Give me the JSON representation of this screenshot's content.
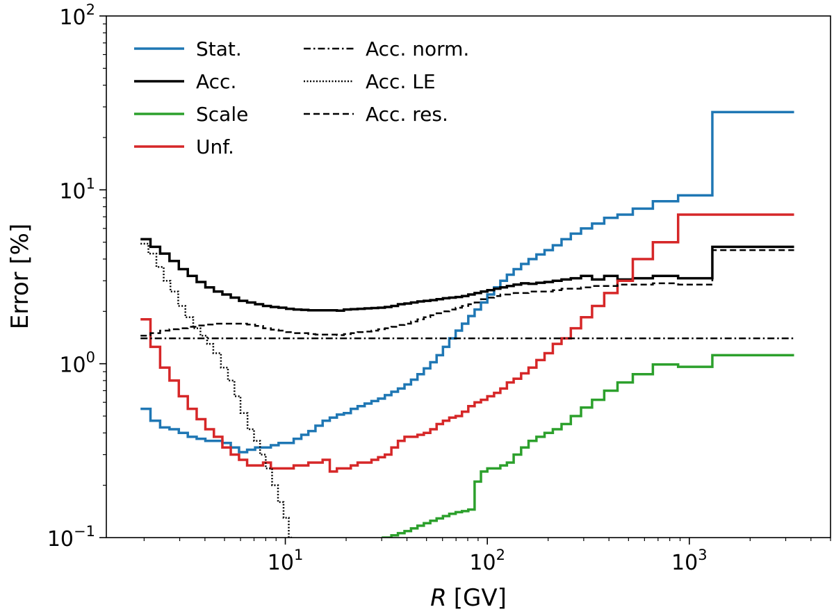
{
  "chart_data": {
    "type": "line",
    "title": "",
    "xlabel": "R",
    "xlabel_unit": "[GV]",
    "ylabel": "Error [%]",
    "xscale": "log",
    "yscale": "log",
    "xlim": [
      1.3,
      5000
    ],
    "ylim": [
      0.1,
      100
    ],
    "x_ticks": [
      {
        "value": 10,
        "base": "10",
        "exp": "1"
      },
      {
        "value": 100,
        "base": "10",
        "exp": "2"
      },
      {
        "value": 1000,
        "base": "10",
        "exp": "3"
      }
    ],
    "y_ticks": [
      {
        "value": 0.1,
        "base": "10",
        "exp": "−1"
      },
      {
        "value": 1,
        "base": "10",
        "exp": "0"
      },
      {
        "value": 10,
        "base": "10",
        "exp": "1"
      },
      {
        "value": 100,
        "base": "10",
        "exp": "2"
      }
    ],
    "legend_position": "top-left",
    "series": [
      {
        "name": "Stat.",
        "color": "#1f77b4",
        "dash": "solid",
        "width": 3.5,
        "legend_col": 0,
        "legend_row": 0,
        "x": [
          1.92,
          2.15,
          2.4,
          2.67,
          2.97,
          3.29,
          3.64,
          4.02,
          4.43,
          4.88,
          5.37,
          5.9,
          6.47,
          7.09,
          7.76,
          8.48,
          9.26,
          10.1,
          11.0,
          12.0,
          13.0,
          14.1,
          15.3,
          16.6,
          18.0,
          19.5,
          21.1,
          22.8,
          24.7,
          26.7,
          28.8,
          31.1,
          33.5,
          36.1,
          38.9,
          41.9,
          45.1,
          48.5,
          52.2,
          56.1,
          60.3,
          64.8,
          69.7,
          74.9,
          80.5,
          86.5,
          93.0,
          100,
          108,
          116,
          125,
          135,
          147,
          160,
          175,
          192,
          211,
          233,
          259,
          291,
          330,
          379,
          441,
          525,
          660,
          880,
          1300,
          3300
        ],
        "y": [
          0.55,
          0.47,
          0.43,
          0.42,
          0.4,
          0.38,
          0.37,
          0.36,
          0.36,
          0.35,
          0.33,
          0.31,
          0.32,
          0.33,
          0.33,
          0.34,
          0.35,
          0.35,
          0.37,
          0.39,
          0.41,
          0.44,
          0.47,
          0.49,
          0.51,
          0.52,
          0.55,
          0.57,
          0.59,
          0.61,
          0.63,
          0.66,
          0.69,
          0.72,
          0.76,
          0.81,
          0.87,
          0.94,
          1.02,
          1.12,
          1.25,
          1.4,
          1.55,
          1.7,
          1.88,
          2.05,
          2.25,
          2.5,
          2.75,
          3.0,
          3.25,
          3.5,
          3.75,
          4.0,
          4.25,
          4.5,
          4.8,
          5.2,
          5.6,
          6.0,
          6.4,
          6.9,
          7.2,
          7.8,
          8.6,
          9.3,
          28,
          28
        ]
      },
      {
        "name": "Acc.",
        "color": "#000000",
        "dash": "solid",
        "width": 3.5,
        "legend_col": 0,
        "legend_row": 1,
        "x": [
          1.92,
          2.15,
          2.4,
          2.67,
          2.97,
          3.29,
          3.64,
          4.02,
          4.43,
          4.88,
          5.37,
          5.9,
          6.47,
          7.09,
          7.76,
          8.48,
          9.26,
          10.1,
          11.0,
          12.0,
          13.0,
          14.1,
          15.3,
          16.6,
          18.0,
          19.5,
          21.1,
          22.8,
          24.7,
          26.7,
          28.8,
          31.1,
          33.5,
          36.1,
          38.9,
          41.9,
          45.1,
          48.5,
          52.2,
          56.1,
          60.3,
          64.8,
          69.7,
          74.9,
          80.5,
          86.5,
          93.0,
          100,
          108,
          116,
          125,
          135,
          147,
          160,
          175,
          192,
          211,
          233,
          259,
          291,
          330,
          379,
          441,
          525,
          660,
          880,
          1300,
          3300
        ],
        "y": [
          5.2,
          4.7,
          4.3,
          3.9,
          3.5,
          3.2,
          2.95,
          2.75,
          2.6,
          2.5,
          2.4,
          2.3,
          2.25,
          2.2,
          2.15,
          2.12,
          2.1,
          2.07,
          2.05,
          2.04,
          2.03,
          2.03,
          2.03,
          2.03,
          2.02,
          2.05,
          2.06,
          2.07,
          2.08,
          2.09,
          2.1,
          2.12,
          2.15,
          2.2,
          2.22,
          2.25,
          2.28,
          2.3,
          2.32,
          2.35,
          2.38,
          2.4,
          2.42,
          2.45,
          2.5,
          2.55,
          2.6,
          2.65,
          2.7,
          2.75,
          2.8,
          2.85,
          2.9,
          2.88,
          2.92,
          2.95,
          3.0,
          3.05,
          3.1,
          3.2,
          3.05,
          3.2,
          3.05,
          3.1,
          3.2,
          3.1,
          4.7,
          4.7
        ]
      },
      {
        "name": "Scale",
        "color": "#2ca02c",
        "dash": "solid",
        "width": 3.5,
        "legend_col": 0,
        "legend_row": 2,
        "x": [
          30,
          33.5,
          36.1,
          38.9,
          41.9,
          45.1,
          48.5,
          52.2,
          56.1,
          60.3,
          64.8,
          69.7,
          74.9,
          80.5,
          86.5,
          93.0,
          100,
          108,
          116,
          125,
          135,
          147,
          160,
          175,
          192,
          211,
          233,
          259,
          291,
          330,
          379,
          441,
          525,
          660,
          880,
          1300,
          3300
        ],
        "y": [
          0.1,
          0.103,
          0.106,
          0.109,
          0.113,
          0.117,
          0.121,
          0.125,
          0.129,
          0.133,
          0.137,
          0.14,
          0.142,
          0.145,
          0.21,
          0.24,
          0.25,
          0.25,
          0.26,
          0.27,
          0.3,
          0.33,
          0.36,
          0.38,
          0.4,
          0.42,
          0.45,
          0.5,
          0.56,
          0.62,
          0.7,
          0.78,
          0.87,
          0.99,
          0.96,
          1.12,
          1.12
        ]
      },
      {
        "name": "Unf.",
        "color": "#d62728",
        "dash": "solid",
        "width": 3.5,
        "legend_col": 0,
        "legend_row": 3,
        "x": [
          1.92,
          2.15,
          2.4,
          2.67,
          2.97,
          3.29,
          3.64,
          4.02,
          4.43,
          4.88,
          5.37,
          5.9,
          6.47,
          7.09,
          7.76,
          8.48,
          9.26,
          10.1,
          11.0,
          12.0,
          13.0,
          14.1,
          15.3,
          16.6,
          18.0,
          19.5,
          21.1,
          22.8,
          24.7,
          26.7,
          28.8,
          31.1,
          33.5,
          36.1,
          38.9,
          41.9,
          45.1,
          48.5,
          52.2,
          56.1,
          60.3,
          64.8,
          69.7,
          74.9,
          80.5,
          86.5,
          93.0,
          100,
          108,
          116,
          125,
          135,
          147,
          160,
          175,
          192,
          211,
          233,
          259,
          291,
          330,
          379,
          441,
          525,
          660,
          880,
          1300,
          3300
        ],
        "y": [
          1.8,
          1.25,
          0.95,
          0.8,
          0.65,
          0.55,
          0.48,
          0.42,
          0.38,
          0.33,
          0.3,
          0.28,
          0.26,
          0.26,
          0.27,
          0.25,
          0.25,
          0.25,
          0.26,
          0.26,
          0.27,
          0.27,
          0.28,
          0.24,
          0.25,
          0.25,
          0.26,
          0.27,
          0.27,
          0.28,
          0.29,
          0.3,
          0.33,
          0.36,
          0.38,
          0.38,
          0.39,
          0.4,
          0.42,
          0.45,
          0.47,
          0.49,
          0.5,
          0.53,
          0.57,
          0.6,
          0.62,
          0.65,
          0.68,
          0.72,
          0.78,
          0.82,
          0.88,
          0.95,
          1.05,
          1.15,
          1.3,
          1.4,
          1.6,
          1.85,
          2.15,
          2.55,
          3.0,
          4.0,
          5.0,
          7.2,
          7.2,
          7.2
        ]
      },
      {
        "name": "Acc. norm.",
        "color": "#000000",
        "dash": "dashdot",
        "width": 2.5,
        "legend_col": 1,
        "legend_row": 0,
        "x": [
          1.92,
          3300
        ],
        "y": [
          1.4,
          1.4
        ]
      },
      {
        "name": "Acc. LE",
        "color": "#000000",
        "dash": "dotted",
        "width": 2.5,
        "legend_col": 1,
        "legend_row": 1,
        "x": [
          1.92,
          2.1,
          2.3,
          2.5,
          2.7,
          2.95,
          3.2,
          3.5,
          3.8,
          4.1,
          4.4,
          4.8,
          5.2,
          5.6,
          6.0,
          6.5,
          7.0,
          7.5,
          8.0,
          8.6,
          9.2,
          9.8,
          10.4,
          11.0
        ],
        "y": [
          4.9,
          4.3,
          3.6,
          3.0,
          2.6,
          2.15,
          1.85,
          1.6,
          1.45,
          1.3,
          1.15,
          0.95,
          0.8,
          0.65,
          0.52,
          0.42,
          0.36,
          0.3,
          0.25,
          0.2,
          0.16,
          0.13,
          0.1,
          0.1
        ]
      },
      {
        "name": "Acc. res.",
        "color": "#000000",
        "dash": "dashed",
        "width": 2.5,
        "legend_col": 1,
        "legend_row": 2,
        "x": [
          1.92,
          2.15,
          2.4,
          2.67,
          2.97,
          3.29,
          3.64,
          4.02,
          4.43,
          4.88,
          5.37,
          5.9,
          6.47,
          7.09,
          7.76,
          8.48,
          9.26,
          10.1,
          11.0,
          12.0,
          13.0,
          14.1,
          15.3,
          16.6,
          18.0,
          19.5,
          21.1,
          22.8,
          24.7,
          26.7,
          28.8,
          31.1,
          33.5,
          36.1,
          38.9,
          41.9,
          45.1,
          48.5,
          52.2,
          56.1,
          60.3,
          64.8,
          69.7,
          74.9,
          80.5,
          86.5,
          93.0,
          100,
          108,
          116,
          125,
          135,
          147,
          160,
          175,
          192,
          211,
          233,
          259,
          291,
          330,
          379,
          441,
          525,
          660,
          880,
          1300,
          3300
        ],
        "y": [
          1.45,
          1.5,
          1.55,
          1.58,
          1.6,
          1.63,
          1.66,
          1.68,
          1.7,
          1.7,
          1.7,
          1.7,
          1.68,
          1.65,
          1.6,
          1.57,
          1.55,
          1.52,
          1.5,
          1.5,
          1.48,
          1.47,
          1.47,
          1.47,
          1.46,
          1.48,
          1.5,
          1.52,
          1.53,
          1.55,
          1.58,
          1.6,
          1.63,
          1.67,
          1.7,
          1.75,
          1.8,
          1.85,
          1.9,
          1.95,
          2.0,
          2.05,
          2.1,
          2.15,
          2.2,
          2.25,
          2.35,
          2.4,
          2.45,
          2.5,
          2.5,
          2.55,
          2.55,
          2.6,
          2.6,
          2.6,
          2.65,
          2.7,
          2.7,
          2.75,
          2.8,
          2.8,
          2.85,
          2.85,
          2.9,
          2.85,
          4.5,
          4.5
        ]
      }
    ]
  }
}
